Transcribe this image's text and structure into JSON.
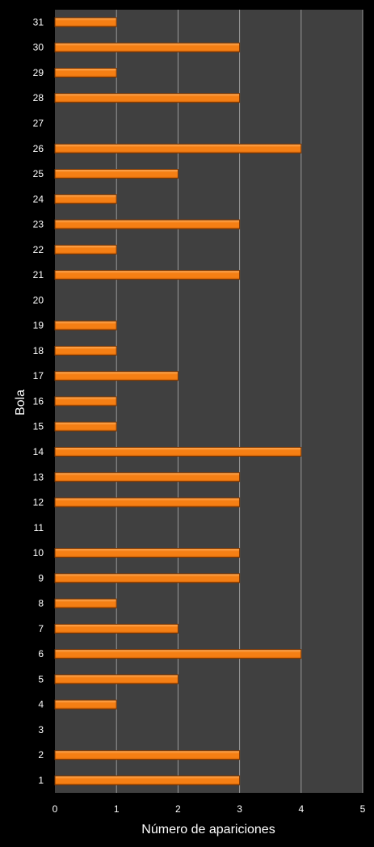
{
  "chart_data": {
    "type": "bar",
    "orientation": "horizontal",
    "xlabel": "Número de apariciones",
    "ylabel": "Bola",
    "xlim": [
      0,
      5
    ],
    "xticks": [
      0,
      1,
      2,
      3,
      4,
      5
    ],
    "grid": true,
    "legend": "none",
    "categories": [
      "1",
      "2",
      "3",
      "4",
      "5",
      "6",
      "7",
      "8",
      "9",
      "10",
      "11",
      "12",
      "13",
      "14",
      "15",
      "16",
      "17",
      "18",
      "19",
      "20",
      "21",
      "22",
      "23",
      "24",
      "25",
      "26",
      "27",
      "28",
      "29",
      "30",
      "31"
    ],
    "values": [
      3,
      3,
      0,
      1,
      2,
      4,
      2,
      1,
      3,
      3,
      0,
      3,
      3,
      4,
      1,
      1,
      2,
      1,
      1,
      0,
      3,
      1,
      3,
      1,
      2,
      4,
      0,
      3,
      1,
      3,
      1
    ]
  },
  "colors": {
    "background": "#000000",
    "plot_area": "#404040",
    "gridline": "#9a9a9a",
    "bar_light": "#ffb060",
    "bar_main": "#f57f14",
    "bar_dark": "#c85a00",
    "bar_edge": "#7a3500",
    "text": "#ffffff"
  }
}
